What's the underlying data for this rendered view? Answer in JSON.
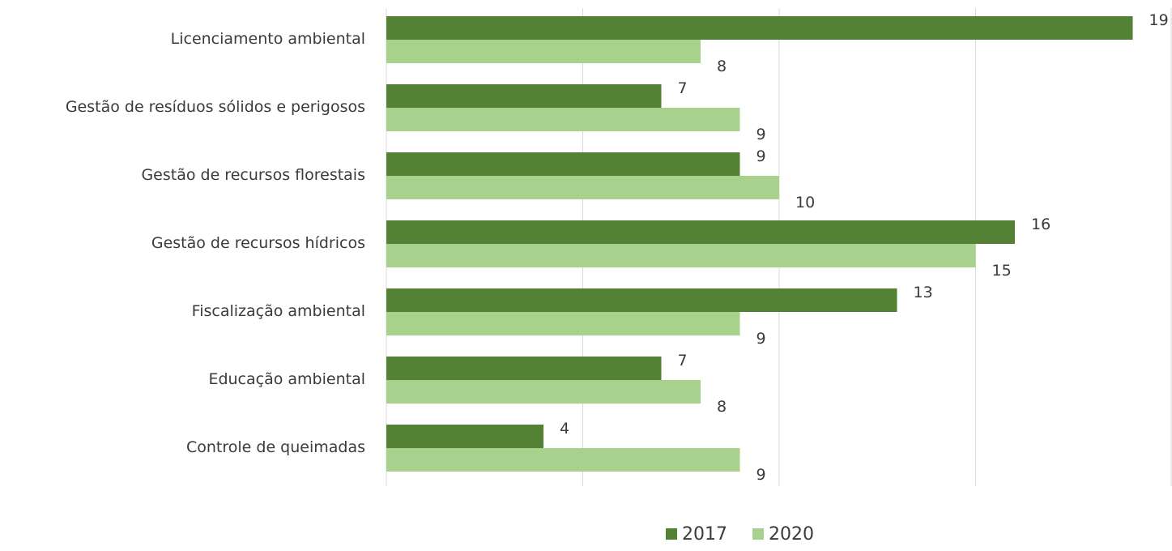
{
  "chart_data": {
    "type": "bar",
    "orientation": "horizontal",
    "categories": [
      "Licenciamento ambiental",
      "Gestão de resíduos sólidos e perigosos",
      "Gestão de recursos florestais",
      "Gestão de recursos hídricos",
      "Fiscalização ambiental",
      "Educação ambiental",
      "Controle de queimadas"
    ],
    "series": [
      {
        "name": "2017",
        "color": "#548235",
        "values": [
          19,
          7,
          9,
          16,
          13,
          7,
          4
        ]
      },
      {
        "name": "2020",
        "color": "#A9D18E",
        "values": [
          8,
          9,
          10,
          15,
          9,
          8,
          9
        ]
      }
    ],
    "xlim": [
      0,
      20
    ],
    "x_gridline_step": 5,
    "x_tick_labels_shown": false,
    "grid": true,
    "data_labels": true,
    "legend_position": "bottom",
    "title": "",
    "xlabel": "",
    "ylabel": ""
  }
}
